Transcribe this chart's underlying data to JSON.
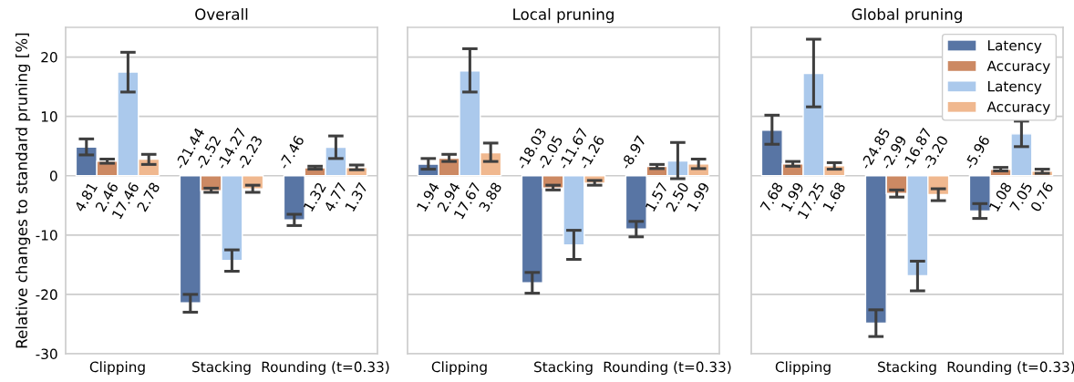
{
  "chart_data": [
    {
      "type": "bar",
      "title": "Overall",
      "ylabel": "Relative changes to standard pruning [%]",
      "categories": [
        "Clipping",
        "Stacking",
        "Rounding (t=0.33)"
      ],
      "ylim": [
        -30,
        25
      ],
      "yticks": [
        -30,
        -20,
        -10,
        0,
        10,
        20
      ],
      "grid": "y",
      "legend": false,
      "series": [
        {
          "color": "#5875a4",
          "values": [
            4.81,
            -21.44,
            -7.46
          ],
          "value_labels": [
            "4.81",
            "-21.44",
            "-7.46"
          ],
          "errors": [
            [
              3.5,
              6.2
            ],
            [
              -23.0,
              -20.0
            ],
            [
              -8.4,
              -6.5
            ]
          ]
        },
        {
          "color": "#cc8963",
          "values": [
            2.46,
            -2.52,
            1.32
          ],
          "value_labels": [
            "2.46",
            "-2.52",
            "1.32"
          ],
          "errors": [
            [
              2.1,
              2.8
            ],
            [
              -2.8,
              -2.1
            ],
            [
              1.1,
              1.6
            ]
          ]
        },
        {
          "color": "#abc9ec",
          "values": [
            17.46,
            -14.27,
            4.77
          ],
          "value_labels": [
            "17.46",
            "-14.27",
            "4.77"
          ],
          "errors": [
            [
              14.1,
              20.8
            ],
            [
              -16.1,
              -12.5
            ],
            [
              2.9,
              6.7
            ]
          ]
        },
        {
          "color": "#f0b88f",
          "values": [
            2.78,
            -2.23,
            1.37
          ],
          "value_labels": [
            "2.78",
            "-2.23",
            "1.37"
          ],
          "errors": [
            [
              1.9,
              3.6
            ],
            [
              -2.8,
              -1.6
            ],
            [
              1.0,
              1.8
            ]
          ]
        }
      ]
    },
    {
      "type": "bar",
      "title": "Local pruning",
      "categories": [
        "Clipping",
        "Stacking",
        "Rounding (t=0.33)"
      ],
      "ylim": [
        -30,
        25
      ],
      "yticks": [
        -30,
        -20,
        -10,
        0,
        10,
        20
      ],
      "tick_labels": "x",
      "grid": "y",
      "legend": false,
      "series": [
        {
          "color": "#5875a4",
          "values": [
            1.94,
            -18.03,
            -8.97
          ],
          "value_labels": [
            "1.94",
            "-18.03",
            "-8.97"
          ],
          "errors": [
            [
              1.1,
              2.9
            ],
            [
              -19.8,
              -16.3
            ],
            [
              -10.3,
              -7.7
            ]
          ]
        },
        {
          "color": "#cc8963",
          "values": [
            2.94,
            -2.05,
            1.57
          ],
          "value_labels": [
            "2.94",
            "-2.05",
            "1.57"
          ],
          "errors": [
            [
              2.4,
              3.6
            ],
            [
              -2.4,
              -1.6
            ],
            [
              1.2,
              1.9
            ]
          ]
        },
        {
          "color": "#abc9ec",
          "values": [
            17.67,
            -11.67,
            2.5
          ],
          "value_labels": [
            "17.67",
            "-11.67",
            "2.50"
          ],
          "errors": [
            [
              14.1,
              21.4
            ],
            [
              -14.1,
              -9.2
            ],
            [
              -0.5,
              5.6
            ]
          ]
        },
        {
          "color": "#f0b88f",
          "values": [
            3.88,
            -1.26,
            1.99
          ],
          "value_labels": [
            "3.88",
            "-1.26",
            "1.99"
          ],
          "errors": [
            [
              2.4,
              5.5
            ],
            [
              -1.6,
              -0.8
            ],
            [
              1.2,
              2.8
            ]
          ]
        }
      ]
    },
    {
      "type": "bar",
      "title": "Global pruning",
      "categories": [
        "Clipping",
        "Stacking",
        "Rounding (t=0.33)"
      ],
      "ylim": [
        -30,
        25
      ],
      "yticks": [
        -30,
        -20,
        -10,
        0,
        10,
        20
      ],
      "tick_labels": "x",
      "grid": "y",
      "legend": "top right",
      "series": [
        {
          "name": "Latency",
          "color": "#5875a4",
          "values": [
            7.68,
            -24.85,
            -5.96
          ],
          "value_labels": [
            "7.68",
            "-24.85",
            "-5.96"
          ],
          "errors": [
            [
              5.3,
              10.2
            ],
            [
              -27.1,
              -22.6
            ],
            [
              -7.2,
              -4.7
            ]
          ]
        },
        {
          "name": "Accuracy",
          "color": "#cc8963",
          "values": [
            1.99,
            -2.99,
            1.08
          ],
          "value_labels": [
            "1.99",
            "-2.99",
            "1.08"
          ],
          "errors": [
            [
              1.6,
              2.4
            ],
            [
              -3.6,
              -2.4
            ],
            [
              0.8,
              1.4
            ]
          ]
        },
        {
          "name": "Latency",
          "color": "#abc9ec",
          "values": [
            17.25,
            -16.87,
            7.05
          ],
          "value_labels": [
            "17.25",
            "-16.87",
            "7.05"
          ],
          "errors": [
            [
              11.6,
              23.0
            ],
            [
              -19.4,
              -14.4
            ],
            [
              4.9,
              9.2
            ]
          ]
        },
        {
          "name": "Accuracy",
          "color": "#f0b88f",
          "values": [
            1.68,
            -3.2,
            0.76
          ],
          "value_labels": [
            "1.68",
            "-3.20",
            "0.76"
          ],
          "errors": [
            [
              1.1,
              2.2
            ],
            [
              -4.2,
              -2.2
            ],
            [
              0.4,
              1.1
            ]
          ]
        }
      ]
    }
  ]
}
